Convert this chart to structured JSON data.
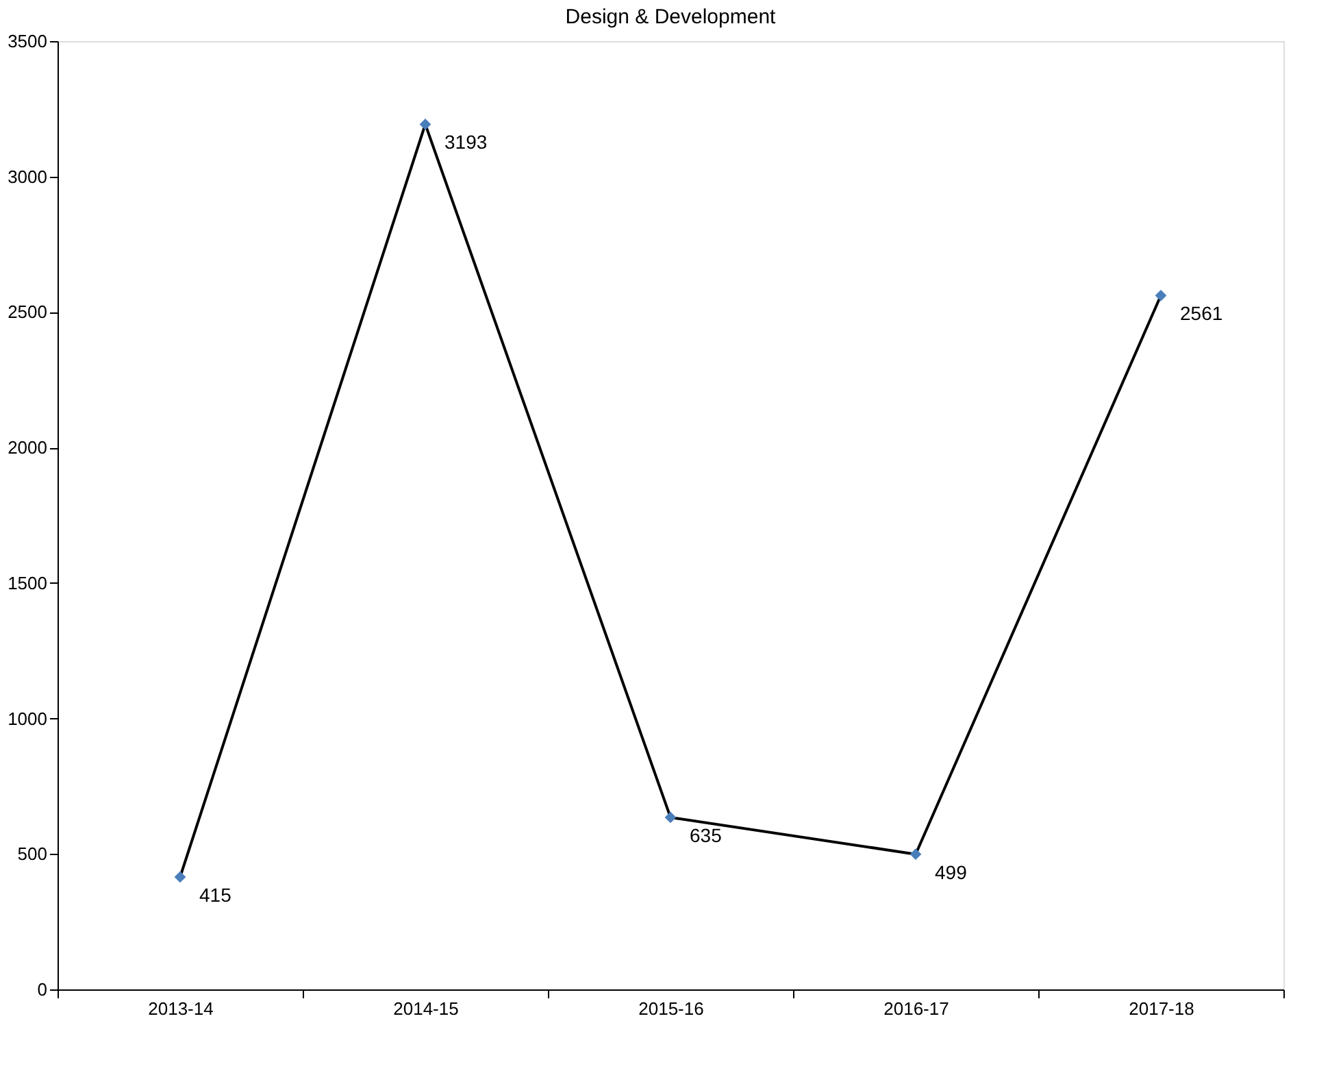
{
  "chart_data": {
    "type": "line",
    "title": "Design & Development",
    "categories": [
      "2013-14",
      "2014-15",
      "2015-16",
      "2016-17",
      "2017-18"
    ],
    "series": [
      {
        "color": "#000000",
        "colors": [
          "#4a7ebb",
          "#4a7ebb",
          "#4a7ebb",
          "#4a7ebb",
          "#4a7ebb"
        ],
        "values": [
          415,
          3193,
          635,
          499,
          2561
        ]
      }
    ],
    "ylim": [
      0,
      3500
    ],
    "yticks": [
      0,
      500,
      1000,
      1500,
      2000,
      2500,
      3000,
      3500
    ],
    "grid": false,
    "marker": "diamond",
    "line_style": "solid",
    "data_labels": true
  }
}
